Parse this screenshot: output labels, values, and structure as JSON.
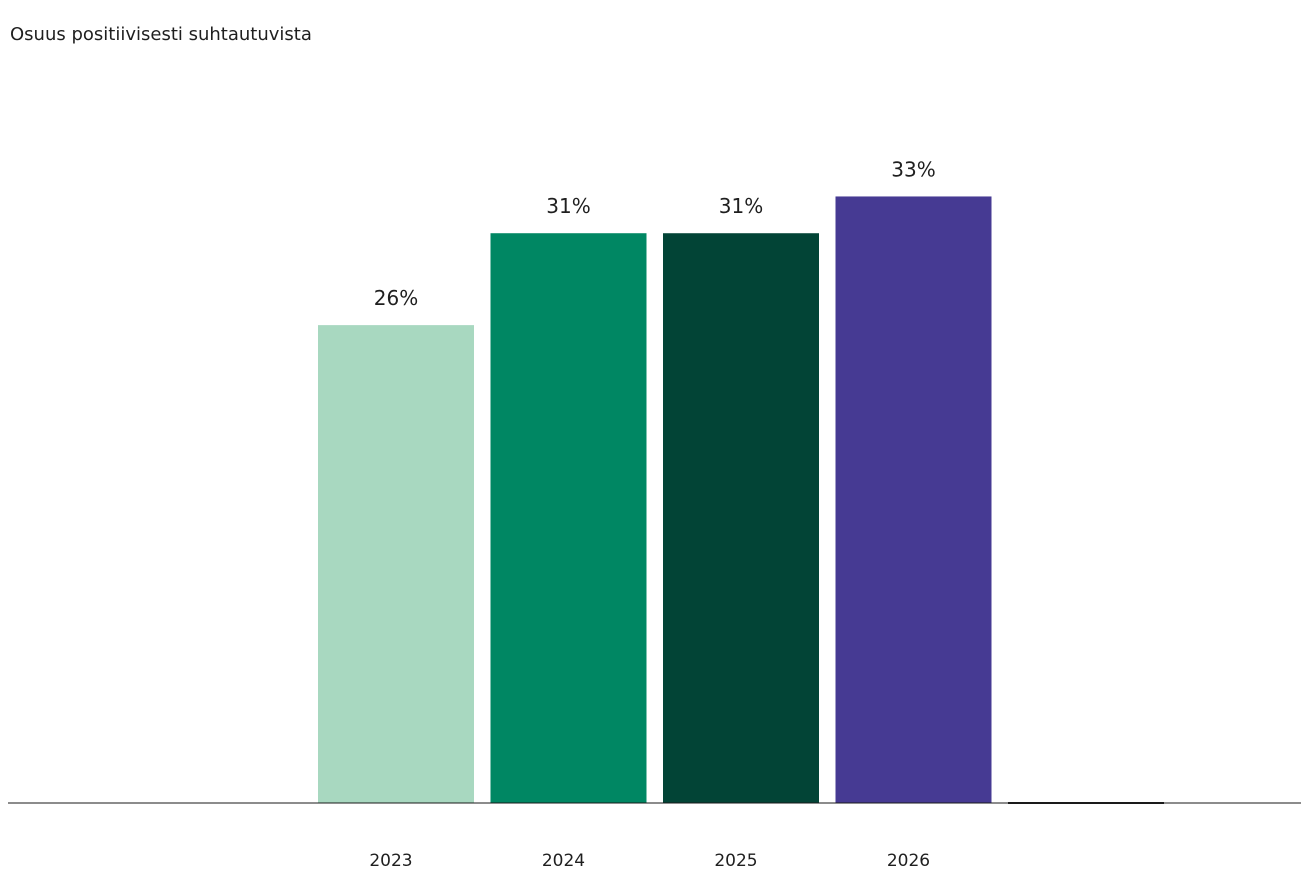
{
  "chart_data": {
    "type": "bar",
    "title": "Osuus positiivisesti suhtautuvista",
    "categories": [
      "2023",
      "2024",
      "2025",
      "2026",
      ""
    ],
    "values": [
      26,
      31,
      31,
      33,
      0
    ],
    "value_labels": [
      "26%",
      "31%",
      "31%",
      "33%",
      ""
    ],
    "colors": [
      "#a8d8c0",
      "#008763",
      "#024436",
      "#463a93",
      "#1a1a1a"
    ],
    "xlabel": "",
    "ylabel": "",
    "grid": false,
    "legend": "none"
  }
}
